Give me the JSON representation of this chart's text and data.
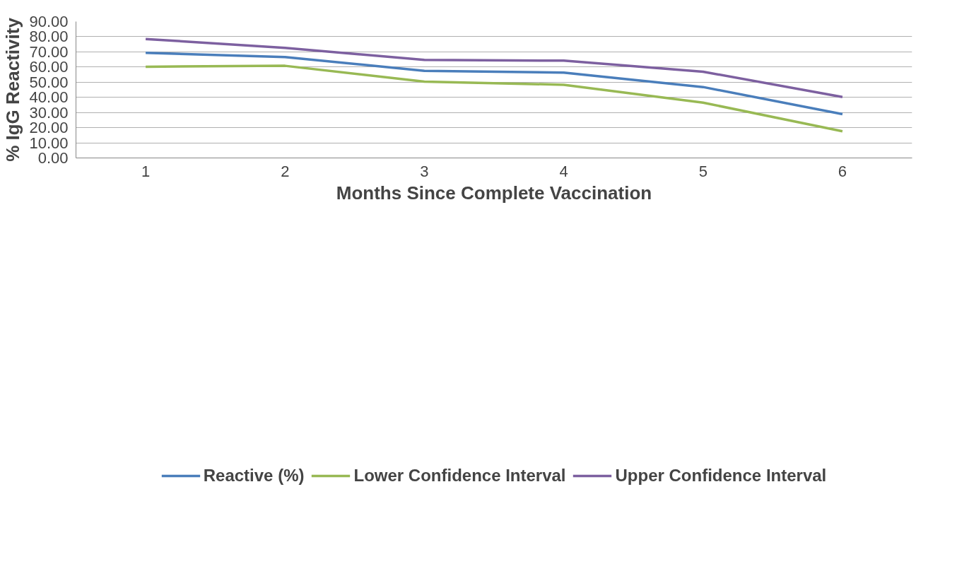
{
  "chart_data": {
    "type": "line",
    "xlabel": "Months Since Complete Vaccination",
    "ylabel": "% IgG Reactivity",
    "categories": [
      "1",
      "2",
      "3",
      "4",
      "5",
      "6"
    ],
    "series": [
      {
        "name": "Reactive (%)",
        "color": "#4a7ebb",
        "values": [
          69.4,
          66.6,
          57.5,
          56.3,
          46.8,
          28.9
        ]
      },
      {
        "name": "Lower Confidence Interval",
        "color": "#98b954",
        "values": [
          60.2,
          60.8,
          50.4,
          48.3,
          36.5,
          17.6
        ]
      },
      {
        "name": "Upper Confidence Interval",
        "color": "#7d60a0",
        "values": [
          78.5,
          72.6,
          64.7,
          64.2,
          56.9,
          40.2
        ]
      }
    ],
    "ylim": [
      0,
      90
    ],
    "yticks": [
      {
        "value": 0,
        "label": "0.00"
      },
      {
        "value": 10,
        "label": "10.00"
      },
      {
        "value": 20,
        "label": "20.00"
      },
      {
        "value": 30,
        "label": "30.00"
      },
      {
        "value": 40,
        "label": "40.00"
      },
      {
        "value": 50,
        "label": "50.00"
      },
      {
        "value": 60,
        "label": "60.00"
      },
      {
        "value": 70,
        "label": "70.00"
      },
      {
        "value": 80,
        "label": "80.00"
      },
      {
        "value": 90,
        "label": "90.00"
      }
    ],
    "grid": "y",
    "legend": "bottom",
    "marker": "none",
    "line_style": "solid"
  }
}
